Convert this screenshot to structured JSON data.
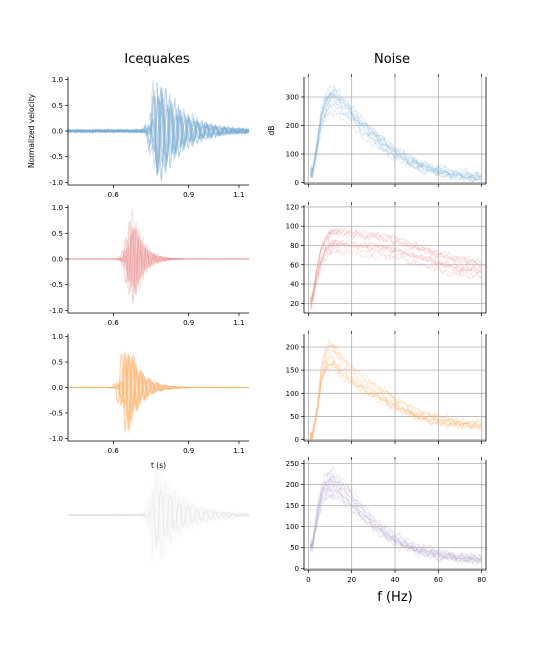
{
  "figure": {
    "column_titles": [
      "Icequakes",
      "Noise"
    ]
  },
  "colors": {
    "blue": "#7aaed3",
    "red": "#ea8e8e",
    "orange": "#fdb36b",
    "purple": "#b7a8d0",
    "gray": "#c8c8c8"
  },
  "chart_data": [
    {
      "type": "line",
      "panel": "waveform-1",
      "color": "blue",
      "opacity": 0.45,
      "nTraces": 14,
      "xlim": [
        0.42,
        1.14
      ],
      "ylim": [
        -1.05,
        1.05
      ],
      "xticks": [
        "0.6",
        "0.9",
        "1.1"
      ],
      "xtickValues": [
        0.6,
        0.9,
        1.1
      ],
      "yticks": [
        "1.0",
        "0.5",
        "0.0",
        "-0.5",
        "-1.0"
      ],
      "ytickValues": [
        1.0,
        0.5,
        0.0,
        -0.5,
        -1.0
      ],
      "ylabel": "Normalized velocity",
      "xlabel": "",
      "wave": {
        "t0": 0.78,
        "freq": 28,
        "decay": 10,
        "noise": 0.1
      }
    },
    {
      "type": "line",
      "panel": "waveform-2",
      "color": "red",
      "opacity": 0.35,
      "nTraces": 14,
      "xlim": [
        0.42,
        1.14
      ],
      "ylim": [
        -1.05,
        1.05
      ],
      "xticks": [
        "0.6",
        "0.9",
        "1.1"
      ],
      "xtickValues": [
        0.6,
        0.9,
        1.1
      ],
      "yticks": [
        "1.0",
        "0.5",
        "0.0",
        "-0.5",
        "-1.0"
      ],
      "ytickValues": [
        1.0,
        0.5,
        0.0,
        -0.5,
        -1.0
      ],
      "ylabel": "",
      "xlabel": "",
      "wave": {
        "t0": 0.68,
        "freq": 35,
        "decay": 26,
        "noise": 0.015
      }
    },
    {
      "type": "line",
      "panel": "waveform-3",
      "color": "orange",
      "opacity": 0.5,
      "nTraces": 12,
      "xlim": [
        0.42,
        1.14
      ],
      "ylim": [
        -1.05,
        1.05
      ],
      "xticks": [
        "0.6",
        "0.9",
        "1.1"
      ],
      "xtickValues": [
        0.6,
        0.9,
        1.1
      ],
      "yticks": [
        "1.0",
        "0.5",
        "0.0",
        "-0.5",
        "-1.0"
      ],
      "ytickValues": [
        1.0,
        0.5,
        0.0,
        -0.5,
        -1.0
      ],
      "ylabel": "",
      "xlabel": "t (s)",
      "wave": {
        "t0": 0.66,
        "freq": 32,
        "decay": 20,
        "noise": 0.01
      }
    },
    {
      "type": "line",
      "panel": "waveform-4",
      "color": "gray",
      "opacity": 0.12,
      "nTraces": 10,
      "xlim": [
        0.42,
        1.14
      ],
      "ylim": [
        -1.05,
        1.05
      ],
      "xticks": [],
      "yticks": [],
      "ylabel": "",
      "xlabel": "",
      "wave": {
        "t0": 0.78,
        "freq": 28,
        "decay": 10,
        "noise": 0.05
      }
    },
    {
      "type": "line",
      "panel": "spectrum-1",
      "color": "blue",
      "opacity": 0.3,
      "nTraces": 12,
      "xlim": [
        -2,
        82
      ],
      "ylim": [
        -5,
        370
      ],
      "x": [
        1,
        2,
        4,
        6,
        8,
        10,
        12,
        15,
        20,
        25,
        30,
        35,
        40,
        45,
        50,
        55,
        60,
        65,
        70,
        75,
        80
      ],
      "y": [
        30,
        35,
        120,
        220,
        265,
        285,
        290,
        270,
        230,
        190,
        160,
        130,
        100,
        80,
        62,
        48,
        38,
        30,
        24,
        18,
        15
      ],
      "xticks": [],
      "xtickPositions": [
        0,
        20,
        40,
        60,
        80
      ],
      "yticks": [
        "300",
        "200",
        "100",
        "0"
      ],
      "ytickValues": [
        300,
        200,
        100,
        0
      ],
      "ylabel": "dB",
      "xlabel": ""
    },
    {
      "type": "line",
      "panel": "spectrum-2",
      "color": "red",
      "opacity": 0.3,
      "nTraces": 12,
      "xlim": [
        -2,
        82
      ],
      "ylim": [
        10,
        122
      ],
      "x": [
        1,
        2,
        4,
        6,
        8,
        10,
        12,
        15,
        20,
        25,
        30,
        35,
        40,
        45,
        50,
        55,
        60,
        65,
        70,
        75,
        80
      ],
      "y": [
        18,
        25,
        50,
        68,
        78,
        83,
        85,
        84,
        83,
        82,
        81,
        79,
        77,
        74,
        70,
        67,
        63,
        60,
        58,
        57,
        54
      ],
      "xticks": [],
      "xtickPositions": [
        0,
        20,
        40,
        60,
        80
      ],
      "yticks": [
        "120",
        "100",
        "80",
        "60",
        "40",
        "20"
      ],
      "ytickValues": [
        120,
        100,
        80,
        60,
        40,
        20
      ],
      "ylabel": "",
      "xlabel": ""
    },
    {
      "type": "line",
      "panel": "spectrum-3",
      "color": "orange",
      "opacity": 0.3,
      "nTraces": 12,
      "xlim": [
        -2,
        82
      ],
      "ylim": [
        -3,
        228
      ],
      "x": [
        1,
        2,
        4,
        6,
        8,
        10,
        12,
        15,
        20,
        25,
        30,
        35,
        40,
        45,
        50,
        55,
        60,
        65,
        70,
        75,
        80
      ],
      "y": [
        5,
        10,
        60,
        140,
        175,
        185,
        180,
        160,
        140,
        120,
        105,
        92,
        78,
        65,
        55,
        48,
        42,
        38,
        35,
        32,
        30
      ],
      "xticks": [],
      "xtickPositions": [
        0,
        20,
        40,
        60,
        80
      ],
      "yticks": [
        "200",
        "150",
        "100",
        "50",
        "0"
      ],
      "ytickValues": [
        200,
        150,
        100,
        50,
        0
      ],
      "ylabel": "",
      "xlabel": ""
    },
    {
      "type": "line",
      "panel": "spectrum-4",
      "color": "purple",
      "opacity": 0.35,
      "nTraces": 12,
      "xlim": [
        -2,
        82
      ],
      "ylim": [
        -3,
        258
      ],
      "x": [
        1,
        2,
        4,
        6,
        8,
        10,
        12,
        15,
        20,
        25,
        30,
        35,
        40,
        45,
        50,
        55,
        60,
        65,
        70,
        75,
        80
      ],
      "y": [
        50,
        55,
        120,
        170,
        190,
        200,
        198,
        185,
        160,
        130,
        105,
        85,
        68,
        55,
        45,
        38,
        32,
        28,
        24,
        22,
        20
      ],
      "xticks": [
        "0",
        "20",
        "40",
        "60",
        "80"
      ],
      "xtickPositions": [
        0,
        20,
        40,
        60,
        80
      ],
      "yticks": [
        "250",
        "200",
        "150",
        "100",
        "50",
        "0"
      ],
      "ytickValues": [
        250,
        200,
        150,
        100,
        50,
        0
      ],
      "ylabel": "",
      "xlabel": "f (Hz)"
    }
  ]
}
